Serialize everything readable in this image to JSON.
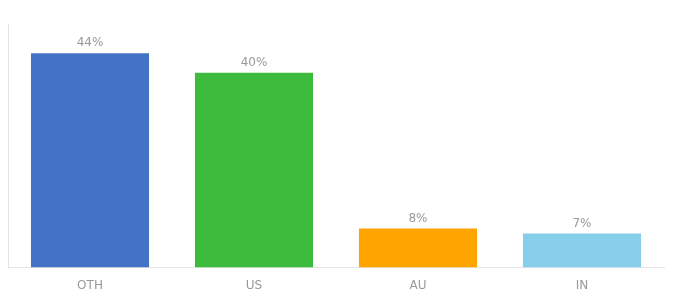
{
  "chart_data": {
    "type": "bar",
    "categories": [
      "OTH",
      "US",
      "AU",
      "IN"
    ],
    "values": [
      44,
      40,
      8,
      7
    ],
    "value_labels": [
      "44%",
      "40%",
      "8%",
      "7%"
    ],
    "data_labels": true,
    "colors": [
      "#4472C4",
      "#3DBB3D",
      "#FFA500",
      "#87CEEB"
    ],
    "ylim": [
      0,
      50
    ],
    "tick_labels": "x",
    "grid": false
  }
}
